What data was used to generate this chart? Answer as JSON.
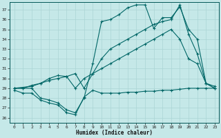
{
  "xlabel": "Humidex (Indice chaleur)",
  "xlim": [
    -0.5,
    23.5
  ],
  "ylim": [
    25.5,
    37.8
  ],
  "yticks": [
    26,
    27,
    28,
    29,
    30,
    31,
    32,
    33,
    34,
    35,
    36,
    37
  ],
  "xticks": [
    0,
    1,
    2,
    3,
    4,
    5,
    6,
    7,
    8,
    9,
    10,
    11,
    12,
    13,
    14,
    15,
    16,
    17,
    18,
    19,
    20,
    21,
    22,
    23
  ],
  "bg_color": "#c5e8e8",
  "grid_color": "#aad4d4",
  "line_color": "#006666",
  "line1_x": [
    0,
    1,
    2,
    3,
    4,
    5,
    6,
    7,
    8,
    9,
    10,
    11,
    12,
    13,
    14,
    15,
    16,
    17,
    18,
    19,
    20,
    21,
    22,
    23
  ],
  "line1_y": [
    28.8,
    28.5,
    28.5,
    27.8,
    27.5,
    27.3,
    26.5,
    26.3,
    28.1,
    28.8,
    28.5,
    28.5,
    28.5,
    28.6,
    28.6,
    28.7,
    28.7,
    28.8,
    28.8,
    28.9,
    29.0,
    29.0,
    29.0,
    29.0
  ],
  "line2_x": [
    0,
    1,
    2,
    3,
    4,
    5,
    6,
    7,
    8,
    9,
    10,
    11,
    12,
    13,
    14,
    15,
    16,
    17,
    18,
    19,
    20,
    21,
    22,
    23
  ],
  "line2_y": [
    29.0,
    29.0,
    29.3,
    29.5,
    29.8,
    30.0,
    30.2,
    29.0,
    30.0,
    30.5,
    31.0,
    31.5,
    32.0,
    32.5,
    33.0,
    33.5,
    34.0,
    34.5,
    35.0,
    34.0,
    32.0,
    31.5,
    29.5,
    29.0
  ],
  "line3_x": [
    0,
    1,
    2,
    3,
    4,
    5,
    6,
    7,
    8,
    9,
    10,
    11,
    12,
    13,
    14,
    15,
    16,
    17,
    18,
    19,
    20,
    21,
    22,
    23
  ],
  "line3_y": [
    29.0,
    29.0,
    29.0,
    28.0,
    27.8,
    27.5,
    26.8,
    26.5,
    28.0,
    31.5,
    35.8,
    36.0,
    36.5,
    37.2,
    37.5,
    37.5,
    35.1,
    36.2,
    36.2,
    37.3,
    35.0,
    34.0,
    29.5,
    29.2
  ],
  "line4_x": [
    0,
    2,
    3,
    4,
    5,
    6,
    7,
    8,
    9,
    10,
    11,
    12,
    13,
    14,
    15,
    16,
    17,
    18,
    19,
    20,
    21,
    22,
    23
  ],
  "line4_y": [
    29.0,
    29.2,
    29.5,
    30.0,
    30.3,
    30.2,
    30.5,
    29.0,
    30.5,
    32.0,
    33.0,
    33.5,
    34.0,
    34.5,
    35.0,
    35.5,
    35.8,
    36.0,
    37.5,
    34.5,
    32.5,
    29.5,
    29.0
  ]
}
